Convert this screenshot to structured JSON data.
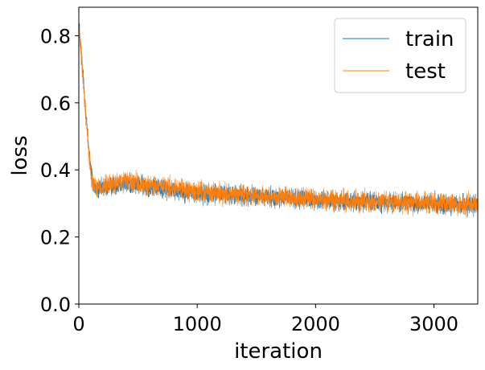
{
  "chart_data": {
    "type": "line",
    "xlabel": "iteration",
    "ylabel": "loss",
    "xlim": [
      0,
      3370
    ],
    "ylim": [
      0.0,
      0.885
    ],
    "xticks": [
      0,
      1000,
      2000,
      3000
    ],
    "xtick_labels": [
      "0",
      "1000",
      "2000",
      "3000"
    ],
    "yticks": [
      0.0,
      0.2,
      0.4,
      0.6,
      0.8
    ],
    "ytick_labels": [
      "0.0",
      "0.2",
      "0.4",
      "0.6",
      "0.8"
    ],
    "grid": false,
    "legend_position": "top-right",
    "series": [
      {
        "name": "train",
        "color": "#1f77b4",
        "x": [
          0,
          20,
          40,
          60,
          80,
          100,
          120,
          150,
          200,
          300,
          400,
          500,
          700,
          1000,
          1300,
          1600,
          2000,
          2400,
          2800,
          3200,
          3370
        ],
        "mean": [
          0.84,
          0.75,
          0.66,
          0.57,
          0.48,
          0.41,
          0.36,
          0.34,
          0.345,
          0.355,
          0.36,
          0.355,
          0.345,
          0.33,
          0.325,
          0.32,
          0.31,
          0.305,
          0.3,
          0.297,
          0.295
        ],
        "noise": 0.014
      },
      {
        "name": "test",
        "color": "#ff7f0e",
        "x": [
          0,
          20,
          40,
          60,
          80,
          100,
          120,
          150,
          200,
          300,
          400,
          500,
          700,
          1000,
          1300,
          1600,
          2000,
          2400,
          2800,
          3200,
          3370
        ],
        "mean": [
          0.82,
          0.74,
          0.65,
          0.56,
          0.47,
          0.4,
          0.36,
          0.345,
          0.35,
          0.36,
          0.365,
          0.358,
          0.348,
          0.335,
          0.328,
          0.322,
          0.312,
          0.307,
          0.302,
          0.298,
          0.296
        ],
        "noise": 0.015
      }
    ]
  }
}
